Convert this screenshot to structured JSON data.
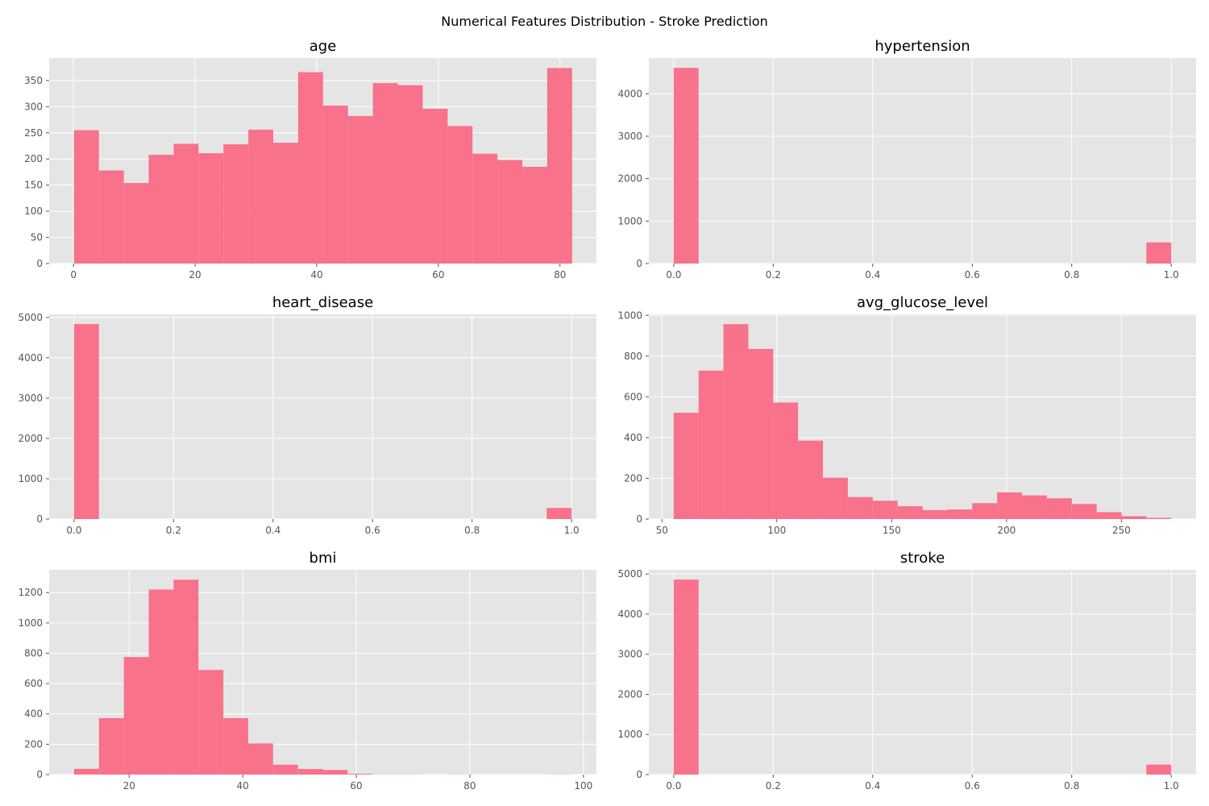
{
  "figure": {
    "suptitle": "Numerical Features Distribution - Stroke Prediction"
  },
  "colors": {
    "bar": "#f7728a",
    "panel_bg": "#e5e5e5",
    "grid": "#ffffff",
    "tick_text": "#555555",
    "title_text": "#000000"
  },
  "chart_data": [
    {
      "type": "bar",
      "title": "age",
      "xlabel": "",
      "ylabel": "",
      "bin_edges": [
        0.08,
        4.18,
        8.27,
        12.37,
        16.47,
        20.56,
        24.66,
        28.76,
        32.85,
        36.95,
        41.04,
        45.14,
        49.24,
        53.33,
        57.43,
        61.53,
        65.62,
        69.72,
        73.82,
        77.91,
        82.0
      ],
      "values": [
        255,
        178,
        154,
        208,
        229,
        211,
        228,
        256,
        231,
        366,
        302,
        282,
        345,
        341,
        296,
        263,
        210,
        198,
        185,
        374
      ],
      "xlim": [
        -4.0,
        86.0
      ],
      "ylim": [
        0,
        393
      ],
      "xticks": [
        0,
        20,
        40,
        60,
        80
      ],
      "xtick_labels": [
        "0",
        "20",
        "40",
        "60",
        "80"
      ],
      "yticks": [
        0,
        50,
        100,
        150,
        200,
        250,
        300,
        350
      ],
      "ytick_labels": [
        "0",
        "50",
        "100",
        "150",
        "200",
        "250",
        "300",
        "350"
      ],
      "grid": true
    },
    {
      "type": "bar",
      "title": "hypertension",
      "xlabel": "",
      "ylabel": "",
      "bin_edges": [
        0.0,
        0.05,
        0.1,
        0.15,
        0.2,
        0.25,
        0.3,
        0.35,
        0.4,
        0.45,
        0.5,
        0.55,
        0.6,
        0.65,
        0.7,
        0.75,
        0.8,
        0.85,
        0.9,
        0.95,
        1.0
      ],
      "values": [
        4612,
        0,
        0,
        0,
        0,
        0,
        0,
        0,
        0,
        0,
        0,
        0,
        0,
        0,
        0,
        0,
        0,
        0,
        0,
        498
      ],
      "xlim": [
        -0.05,
        1.05
      ],
      "ylim": [
        0,
        4843
      ],
      "xticks": [
        0.0,
        0.2,
        0.4,
        0.6,
        0.8,
        1.0
      ],
      "xtick_labels": [
        "0.0",
        "0.2",
        "0.4",
        "0.6",
        "0.8",
        "1.0"
      ],
      "yticks": [
        0,
        1000,
        2000,
        3000,
        4000
      ],
      "ytick_labels": [
        "0",
        "1000",
        "2000",
        "3000",
        "4000"
      ],
      "grid": true
    },
    {
      "type": "bar",
      "title": "heart_disease",
      "xlabel": "",
      "ylabel": "",
      "bin_edges": [
        0.0,
        0.05,
        0.1,
        0.15,
        0.2,
        0.25,
        0.3,
        0.35,
        0.4,
        0.45,
        0.5,
        0.55,
        0.6,
        0.65,
        0.7,
        0.75,
        0.8,
        0.85,
        0.9,
        0.95,
        1.0
      ],
      "values": [
        4834,
        0,
        0,
        0,
        0,
        0,
        0,
        0,
        0,
        0,
        0,
        0,
        0,
        0,
        0,
        0,
        0,
        0,
        0,
        276
      ],
      "xlim": [
        -0.05,
        1.05
      ],
      "ylim": [
        0,
        5076
      ],
      "xticks": [
        0.0,
        0.2,
        0.4,
        0.6,
        0.8,
        1.0
      ],
      "xtick_labels": [
        "0.0",
        "0.2",
        "0.4",
        "0.6",
        "0.8",
        "1.0"
      ],
      "yticks": [
        0,
        1000,
        2000,
        3000,
        4000,
        5000
      ],
      "ytick_labels": [
        "0",
        "1000",
        "2000",
        "3000",
        "4000",
        "5000"
      ],
      "grid": true
    },
    {
      "type": "bar",
      "title": "avg_glucose_level",
      "xlabel": "",
      "ylabel": "",
      "bin_edges": [
        55.12,
        65.95,
        76.78,
        87.61,
        98.43,
        109.26,
        120.09,
        130.92,
        141.75,
        152.58,
        163.41,
        174.23,
        185.06,
        195.89,
        206.72,
        217.55,
        228.38,
        239.21,
        250.03,
        260.86,
        271.69
      ],
      "values": [
        522,
        729,
        957,
        835,
        572,
        385,
        203,
        108,
        90,
        63,
        44,
        47,
        78,
        131,
        116,
        102,
        74,
        34,
        14,
        6
      ],
      "xlim": [
        44.3,
        282.5
      ],
      "ylim": [
        0,
        1005
      ],
      "xticks": [
        50,
        100,
        150,
        200,
        250
      ],
      "xtick_labels": [
        "50",
        "100",
        "150",
        "200",
        "250"
      ],
      "yticks": [
        0,
        200,
        400,
        600,
        800,
        1000
      ],
      "ytick_labels": [
        "0",
        "200",
        "400",
        "600",
        "800",
        "1000"
      ],
      "grid": true
    },
    {
      "type": "bar",
      "title": "bmi",
      "xlabel": "",
      "ylabel": "",
      "bin_edges": [
        10.3,
        14.68,
        19.06,
        23.44,
        27.82,
        32.2,
        36.58,
        40.96,
        45.34,
        49.72,
        54.1,
        58.48,
        62.86,
        67.24,
        71.62,
        76.0,
        80.38,
        84.76,
        89.14,
        93.52,
        97.9
      ],
      "values": [
        38,
        372,
        775,
        1220,
        1285,
        690,
        372,
        205,
        65,
        37,
        30,
        5,
        1,
        1,
        0,
        1,
        0,
        0,
        0,
        1
      ],
      "xlim": [
        5.9,
        102.3
      ],
      "ylim": [
        0,
        1350
      ],
      "xticks": [
        20,
        40,
        60,
        80,
        100
      ],
      "xtick_labels": [
        "20",
        "40",
        "60",
        "80",
        "100"
      ],
      "yticks": [
        0,
        200,
        400,
        600,
        800,
        1000,
        1200
      ],
      "ytick_labels": [
        "0",
        "200",
        "400",
        "600",
        "800",
        "1000",
        "1200"
      ],
      "grid": true
    },
    {
      "type": "bar",
      "title": "stroke",
      "xlabel": "",
      "ylabel": "",
      "bin_edges": [
        0.0,
        0.05,
        0.1,
        0.15,
        0.2,
        0.25,
        0.3,
        0.35,
        0.4,
        0.45,
        0.5,
        0.55,
        0.6,
        0.65,
        0.7,
        0.75,
        0.8,
        0.85,
        0.9,
        0.95,
        1.0
      ],
      "values": [
        4861,
        0,
        0,
        0,
        0,
        0,
        0,
        0,
        0,
        0,
        0,
        0,
        0,
        0,
        0,
        0,
        0,
        0,
        0,
        249
      ],
      "xlim": [
        -0.05,
        1.05
      ],
      "ylim": [
        0,
        5104
      ],
      "xticks": [
        0.0,
        0.2,
        0.4,
        0.6,
        0.8,
        1.0
      ],
      "xtick_labels": [
        "0.0",
        "0.2",
        "0.4",
        "0.6",
        "0.8",
        "1.0"
      ],
      "yticks": [
        0,
        1000,
        2000,
        3000,
        4000,
        5000
      ],
      "ytick_labels": [
        "0",
        "1000",
        "2000",
        "3000",
        "4000",
        "5000"
      ],
      "grid": true
    }
  ]
}
